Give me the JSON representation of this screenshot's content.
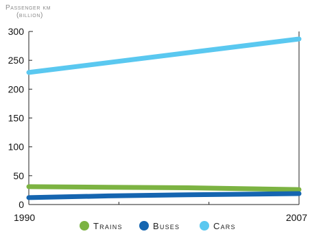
{
  "chart_data": {
    "type": "line",
    "ylabel_line1": "Passenger km",
    "ylabel_line2": "(billion)",
    "xlabel": "",
    "x": [
      1990,
      2007
    ],
    "ylim": [
      0,
      300
    ],
    "yticks": [
      0,
      50,
      100,
      150,
      200,
      250,
      300
    ],
    "xtick_labels": [
      "1990",
      "2007"
    ],
    "grid": false,
    "legend_position": "bottom",
    "series": [
      {
        "name": "Trains",
        "color": "#7cb342",
        "x": [
          1990,
          1995,
          2000,
          2007
        ],
        "values": [
          31,
          30,
          29,
          26
        ]
      },
      {
        "name": "Buses",
        "color": "#1565b0",
        "x": [
          1990,
          1995,
          2000,
          2007
        ],
        "values": [
          12,
          15,
          17,
          19
        ]
      },
      {
        "name": "Cars",
        "color": "#5ac8f0",
        "x": [
          1990,
          2007
        ],
        "values": [
          229,
          287
        ]
      }
    ]
  }
}
